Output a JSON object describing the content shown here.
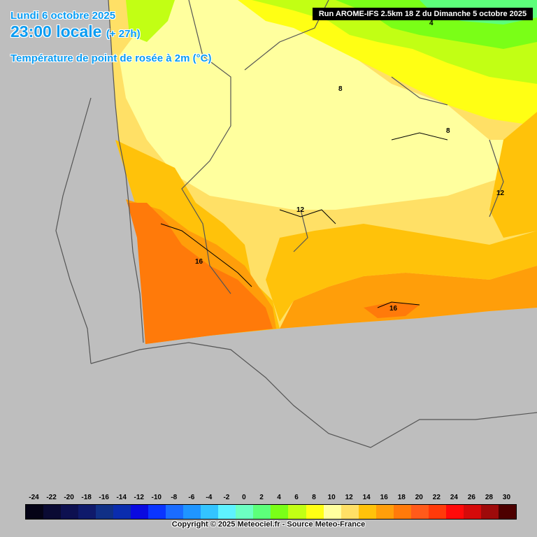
{
  "header": {
    "date": "Lundi 6 octobre 2025",
    "time": "23:00 locale",
    "offset": "(+ 27h)",
    "parameter": "Température de point de rosée à 2m (°C)"
  },
  "run_info": "Run AROME-IFS 2.5km 18 Z du Dimanche 5 octobre 2025",
  "contour_labels": [
    "4",
    "8",
    "8",
    "12",
    "12",
    "16",
    "16"
  ],
  "legend": {
    "ticks": [
      "-24",
      "-22",
      "-20",
      "-18",
      "-16",
      "-14",
      "-12",
      "-10",
      "-8",
      "-6",
      "-4",
      "-2",
      "0",
      "2",
      "4",
      "6",
      "8",
      "10",
      "12",
      "14",
      "16",
      "18",
      "20",
      "22",
      "24",
      "26",
      "28",
      "30"
    ],
    "colors": [
      "#050316",
      "#0a0a33",
      "#0d1050",
      "#0f1a6b",
      "#103086",
      "#0a2cae",
      "#0a0ae0",
      "#0a35ff",
      "#1a6cff",
      "#1f95ff",
      "#33c4ff",
      "#5ef2ff",
      "#6cffc2",
      "#5cff7a",
      "#7aff17",
      "#c2ff14",
      "#ffff14",
      "#ffff9e",
      "#ffe066",
      "#ffc20a",
      "#ff9e0a",
      "#ff7a0a",
      "#ff5a1a",
      "#ff3a0a",
      "#ff0a0a",
      "#d50a0a",
      "#9e0a0a",
      "#4d0000"
    ]
  },
  "copyright": "Copyright © 2025 Meteociel.fr - Source Meteo-France"
}
